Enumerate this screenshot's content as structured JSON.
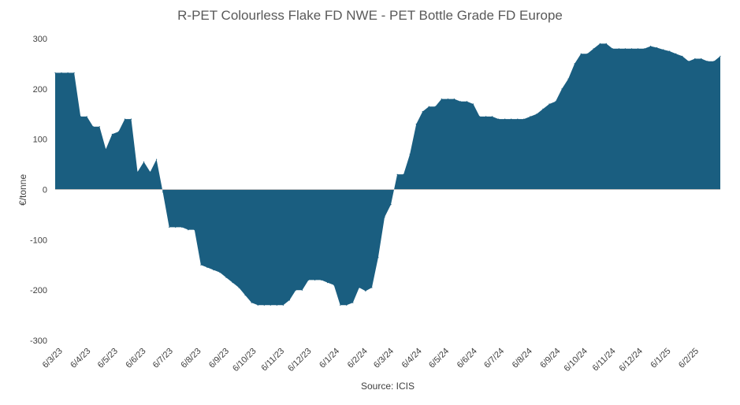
{
  "chart_data": {
    "type": "area",
    "title": "R-PET Colourless Flake FD NWE  - PET Bottle Grade FD Europe",
    "ylabel": "€/tonne",
    "xlabel": "",
    "source": "Source: ICIS",
    "ylim": [
      -300,
      300
    ],
    "yticks": [
      300,
      200,
      100,
      0,
      -100,
      -200,
      -300
    ],
    "grid": false,
    "legend": "none",
    "fill_color": "#1a5e80",
    "x_range": [
      "2023-03-01",
      "2025-03-05"
    ],
    "x_tick_labels": [
      "6/3/23",
      "6/4/23",
      "6/5/23",
      "6/6/23",
      "6/7/23",
      "6/8/23",
      "6/9/23",
      "6/10/23",
      "6/11/23",
      "6/12/23",
      "6/1/24",
      "6/2/24",
      "6/3/24",
      "6/4/24",
      "6/5/24",
      "6/6/24",
      "6/7/24",
      "6/8/24",
      "6/9/24",
      "6/10/24",
      "6/11/24",
      "6/12/24",
      "6/1/25",
      "6/2/25"
    ],
    "x_tick_dates": [
      "2023-03-06",
      "2023-04-06",
      "2023-05-06",
      "2023-06-06",
      "2023-07-06",
      "2023-08-06",
      "2023-09-06",
      "2023-10-06",
      "2023-11-06",
      "2023-12-06",
      "2024-01-06",
      "2024-02-06",
      "2024-03-06",
      "2024-04-06",
      "2024-05-06",
      "2024-06-06",
      "2024-07-06",
      "2024-08-06",
      "2024-09-06",
      "2024-10-06",
      "2024-11-06",
      "2024-12-06",
      "2025-01-06",
      "2025-02-06"
    ],
    "points": [
      [
        "2023-03-01",
        232
      ],
      [
        "2023-03-08",
        232
      ],
      [
        "2023-03-15",
        232
      ],
      [
        "2023-03-22",
        232
      ],
      [
        "2023-03-29",
        145
      ],
      [
        "2023-04-05",
        145
      ],
      [
        "2023-04-12",
        125
      ],
      [
        "2023-04-19",
        125
      ],
      [
        "2023-04-26",
        80
      ],
      [
        "2023-05-03",
        110
      ],
      [
        "2023-05-10",
        115
      ],
      [
        "2023-05-17",
        140
      ],
      [
        "2023-05-24",
        140
      ],
      [
        "2023-05-31",
        35
      ],
      [
        "2023-06-07",
        55
      ],
      [
        "2023-06-14",
        35
      ],
      [
        "2023-06-21",
        60
      ],
      [
        "2023-06-28",
        -5
      ],
      [
        "2023-07-05",
        -75
      ],
      [
        "2023-07-12",
        -75
      ],
      [
        "2023-07-19",
        -75
      ],
      [
        "2023-07-26",
        -80
      ],
      [
        "2023-08-02",
        -80
      ],
      [
        "2023-08-09",
        -150
      ],
      [
        "2023-08-16",
        -155
      ],
      [
        "2023-08-23",
        -160
      ],
      [
        "2023-08-30",
        -165
      ],
      [
        "2023-09-06",
        -175
      ],
      [
        "2023-09-13",
        -185
      ],
      [
        "2023-09-20",
        -195
      ],
      [
        "2023-09-27",
        -210
      ],
      [
        "2023-10-04",
        -225
      ],
      [
        "2023-10-11",
        -230
      ],
      [
        "2023-10-18",
        -230
      ],
      [
        "2023-10-25",
        -230
      ],
      [
        "2023-11-01",
        -230
      ],
      [
        "2023-11-08",
        -230
      ],
      [
        "2023-11-15",
        -220
      ],
      [
        "2023-11-22",
        -200
      ],
      [
        "2023-11-29",
        -200
      ],
      [
        "2023-12-06",
        -180
      ],
      [
        "2023-12-13",
        -180
      ],
      [
        "2023-12-20",
        -180
      ],
      [
        "2023-12-27",
        -185
      ],
      [
        "2024-01-03",
        -190
      ],
      [
        "2024-01-10",
        -230
      ],
      [
        "2024-01-17",
        -230
      ],
      [
        "2024-01-24",
        -225
      ],
      [
        "2024-01-31",
        -195
      ],
      [
        "2024-02-07",
        -202
      ],
      [
        "2024-02-14",
        -195
      ],
      [
        "2024-02-21",
        -135
      ],
      [
        "2024-02-28",
        -55
      ],
      [
        "2024-03-06",
        -30
      ],
      [
        "2024-03-13",
        30
      ],
      [
        "2024-03-20",
        30
      ],
      [
        "2024-03-27",
        70
      ],
      [
        "2024-04-03",
        130
      ],
      [
        "2024-04-10",
        155
      ],
      [
        "2024-04-17",
        165
      ],
      [
        "2024-04-24",
        165
      ],
      [
        "2024-05-01",
        180
      ],
      [
        "2024-05-08",
        180
      ],
      [
        "2024-05-15",
        180
      ],
      [
        "2024-05-22",
        175
      ],
      [
        "2024-05-29",
        175
      ],
      [
        "2024-06-05",
        170
      ],
      [
        "2024-06-12",
        145
      ],
      [
        "2024-06-19",
        145
      ],
      [
        "2024-06-26",
        145
      ],
      [
        "2024-07-03",
        140
      ],
      [
        "2024-07-10",
        140
      ],
      [
        "2024-07-17",
        140
      ],
      [
        "2024-07-24",
        140
      ],
      [
        "2024-07-31",
        140
      ],
      [
        "2024-08-07",
        145
      ],
      [
        "2024-08-14",
        150
      ],
      [
        "2024-08-21",
        160
      ],
      [
        "2024-08-28",
        170
      ],
      [
        "2024-09-04",
        175
      ],
      [
        "2024-09-11",
        200
      ],
      [
        "2024-09-18",
        220
      ],
      [
        "2024-09-25",
        250
      ],
      [
        "2024-10-02",
        270
      ],
      [
        "2024-10-09",
        270
      ],
      [
        "2024-10-16",
        280
      ],
      [
        "2024-10-23",
        290
      ],
      [
        "2024-10-30",
        290
      ],
      [
        "2024-11-06",
        280
      ],
      [
        "2024-11-13",
        280
      ],
      [
        "2024-11-20",
        280
      ],
      [
        "2024-11-27",
        280
      ],
      [
        "2024-12-04",
        280
      ],
      [
        "2024-12-11",
        280
      ],
      [
        "2024-12-18",
        285
      ],
      [
        "2024-12-25",
        282
      ],
      [
        "2025-01-01",
        278
      ],
      [
        "2025-01-08",
        275
      ],
      [
        "2025-01-15",
        270
      ],
      [
        "2025-01-22",
        265
      ],
      [
        "2025-01-29",
        255
      ],
      [
        "2025-02-05",
        260
      ],
      [
        "2025-02-12",
        260
      ],
      [
        "2025-02-19",
        255
      ],
      [
        "2025-02-26",
        255
      ],
      [
        "2025-03-05",
        265
      ]
    ]
  }
}
